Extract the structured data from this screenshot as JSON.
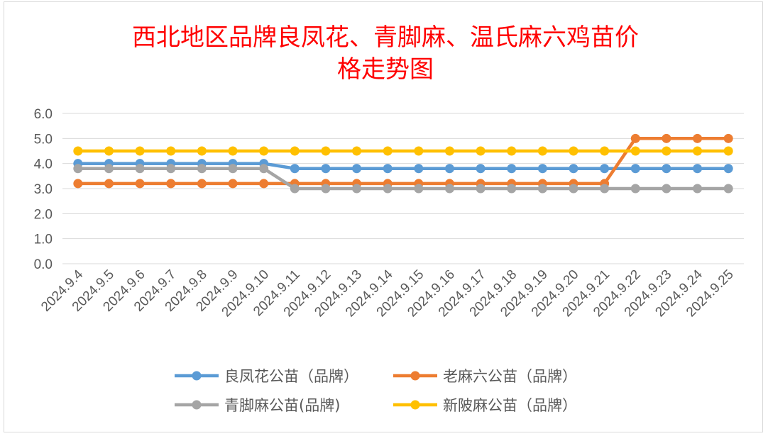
{
  "chart_data": {
    "type": "line",
    "title_line1": "西北地区品牌良凤花、青脚麻、温氏麻六鸡苗价",
    "title_line2": "格走势图",
    "title_color": "#ff0000",
    "ylim": [
      0,
      6
    ],
    "yticks": [
      "0.0",
      "1.0",
      "2.0",
      "3.0",
      "4.0",
      "5.0",
      "6.0"
    ],
    "grid": true,
    "legend_position": "bottom",
    "categories": [
      "2024.9.4",
      "2024.9.5",
      "2024.9.6",
      "2024.9.7",
      "2024.9.8",
      "2024.9.9",
      "2024.9.10",
      "2024.9.11",
      "2024.9.12",
      "2024.9.13",
      "2024.9.14",
      "2024.9.15",
      "2024.9.16",
      "2024.9.17",
      "2024.9.18",
      "2024.9.19",
      "2024.9.20",
      "2024.9.21",
      "2024.9.22",
      "2024.9.23",
      "2024.9.24",
      "2024.9.25"
    ],
    "series": [
      {
        "name": "良凤花公苗（品牌）",
        "color": "#5b9bd5",
        "values": [
          4.0,
          4.0,
          4.0,
          4.0,
          4.0,
          4.0,
          4.0,
          3.8,
          3.8,
          3.8,
          3.8,
          3.8,
          3.8,
          3.8,
          3.8,
          3.8,
          3.8,
          3.8,
          3.8,
          3.8,
          3.8,
          3.8
        ]
      },
      {
        "name": "老麻六公苗（品牌）",
        "color": "#ed7d31",
        "values": [
          3.2,
          3.2,
          3.2,
          3.2,
          3.2,
          3.2,
          3.2,
          3.2,
          3.2,
          3.2,
          3.2,
          3.2,
          3.2,
          3.2,
          3.2,
          3.2,
          3.2,
          3.2,
          5.0,
          5.0,
          5.0,
          5.0
        ]
      },
      {
        "name": "青脚麻公苗(品牌)",
        "color": "#a5a5a5",
        "values": [
          3.8,
          3.8,
          3.8,
          3.8,
          3.8,
          3.8,
          3.8,
          3.0,
          3.0,
          3.0,
          3.0,
          3.0,
          3.0,
          3.0,
          3.0,
          3.0,
          3.0,
          3.0,
          3.0,
          3.0,
          3.0,
          3.0
        ]
      },
      {
        "name": "新陂麻公苗（品牌）",
        "color": "#ffc000",
        "values": [
          4.5,
          4.5,
          4.5,
          4.5,
          4.5,
          4.5,
          4.5,
          4.5,
          4.5,
          4.5,
          4.5,
          4.5,
          4.5,
          4.5,
          4.5,
          4.5,
          4.5,
          4.5,
          4.5,
          4.5,
          4.5,
          4.5
        ]
      }
    ]
  }
}
